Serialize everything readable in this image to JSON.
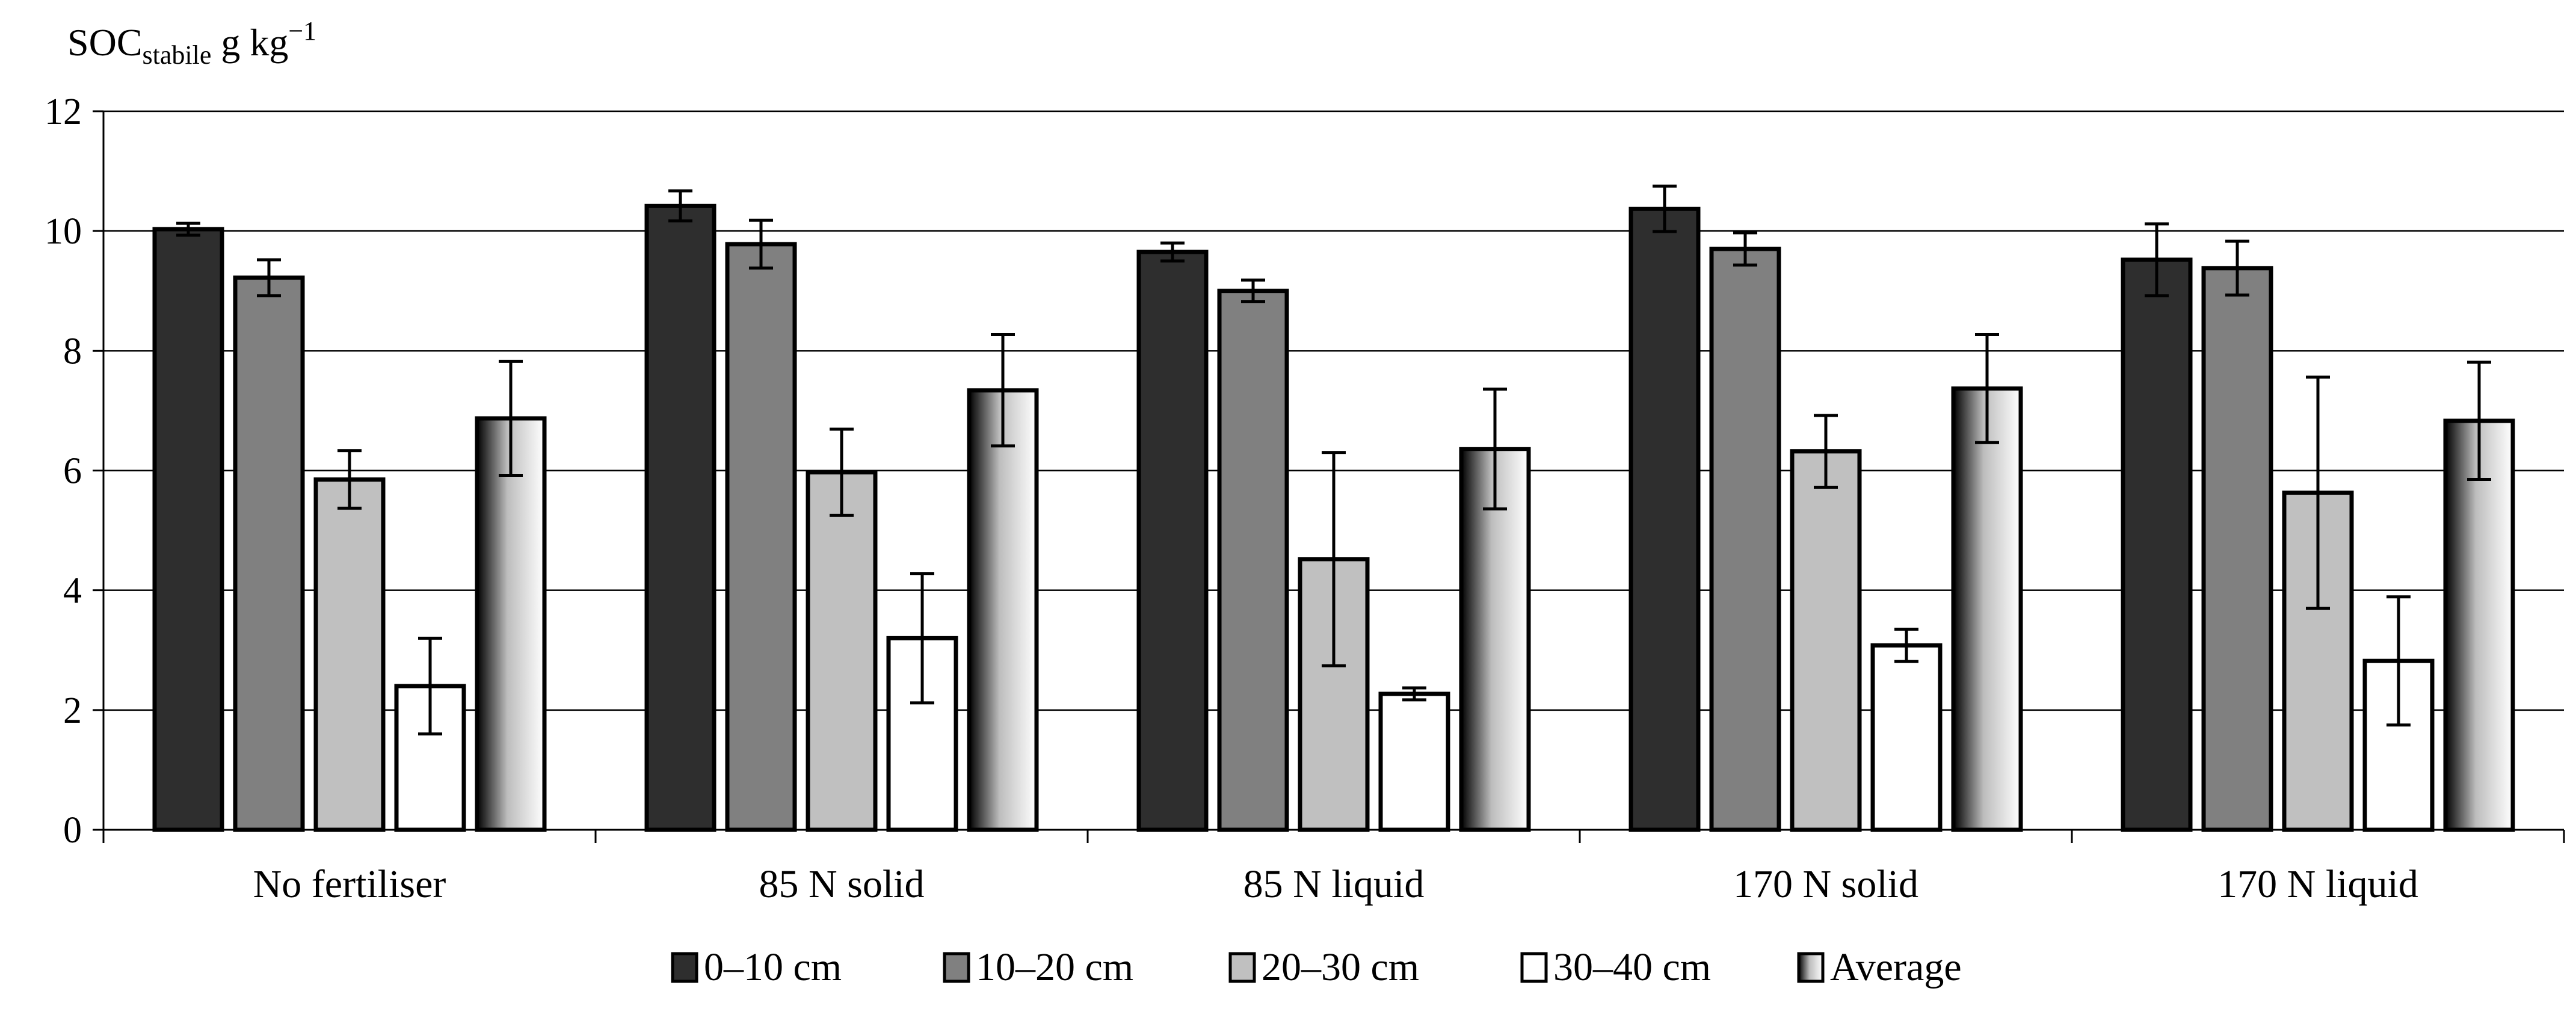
{
  "chart_data": {
    "type": "bar",
    "title": "",
    "ylabel": {
      "main": "SOC",
      "subscript": "stabile",
      "unit_prefix": " g kg",
      "unit_exponent": "−1"
    },
    "xlabel": "",
    "ylim": [
      0,
      12
    ],
    "yticks": [
      0,
      2,
      4,
      6,
      8,
      10,
      12
    ],
    "grid": true,
    "legend_position": "bottom",
    "categories": [
      "No fertiliser",
      "85 N solid",
      "85 N liquid",
      "170 N solid",
      "170 N liquid"
    ],
    "series": [
      {
        "name": "0–10 cm",
        "fill": "#2e2e2e",
        "values": [
          10.03,
          10.42,
          9.65,
          10.37,
          9.52
        ],
        "errors": [
          0.1,
          0.25,
          0.15,
          0.38,
          0.6
        ]
      },
      {
        "name": "10–20 cm",
        "fill": "#808080",
        "values": [
          9.22,
          9.78,
          9.0,
          9.7,
          9.38
        ],
        "errors": [
          0.3,
          0.4,
          0.18,
          0.27,
          0.45
        ]
      },
      {
        "name": "20–30 cm",
        "fill": "#c0c0c0",
        "values": [
          5.85,
          5.97,
          4.52,
          6.32,
          5.63
        ],
        "errors": [
          0.48,
          0.72,
          1.78,
          0.6,
          1.93
        ]
      },
      {
        "name": "30–40 cm",
        "fill": "#ffffff",
        "values": [
          2.4,
          3.2,
          2.27,
          3.08,
          2.82
        ],
        "errors": [
          0.8,
          1.08,
          0.1,
          0.27,
          1.07
        ]
      },
      {
        "name": "Average",
        "fill": "gradient",
        "values": [
          6.87,
          7.34,
          6.36,
          7.37,
          6.83
        ],
        "errors": [
          0.95,
          0.93,
          1.0,
          0.9,
          0.98
        ]
      }
    ]
  }
}
